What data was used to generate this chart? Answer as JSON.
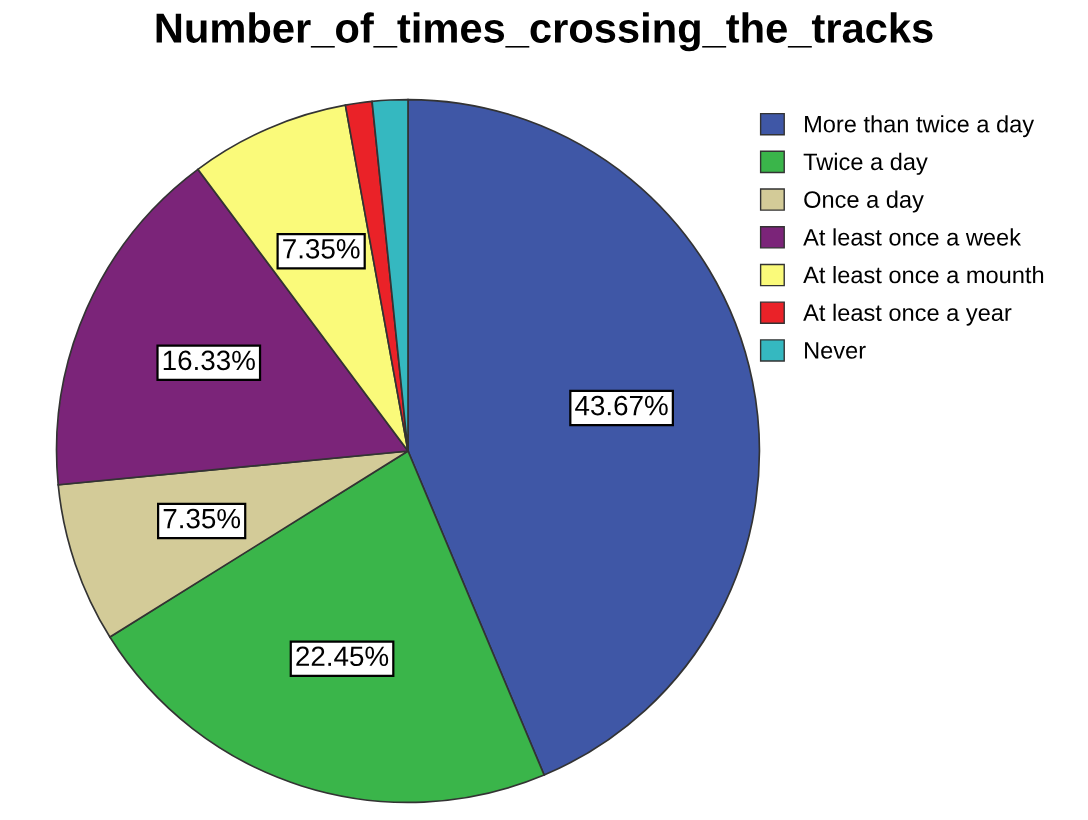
{
  "chart_data": {
    "type": "pie",
    "title": "Number_of_times_crossing_the_tracks",
    "categories": [
      "More than twice a day",
      "Twice a day",
      "Once a day",
      "At least once a week",
      "At least once a mounth",
      "At least once a year",
      "Never"
    ],
    "values": [
      43.67,
      22.45,
      7.35,
      16.33,
      7.35,
      1.22,
      1.63
    ],
    "value_labels": [
      "43.67%",
      "22.45%",
      "7.35%",
      "16.33%",
      "7.35%",
      null,
      null
    ],
    "colors": [
      "#3f57a6",
      "#3ab54a",
      "#d3cb98",
      "#7b2479",
      "#fafa7a",
      "#ea2228",
      "#35b8c0"
    ],
    "legend": "top right"
  }
}
